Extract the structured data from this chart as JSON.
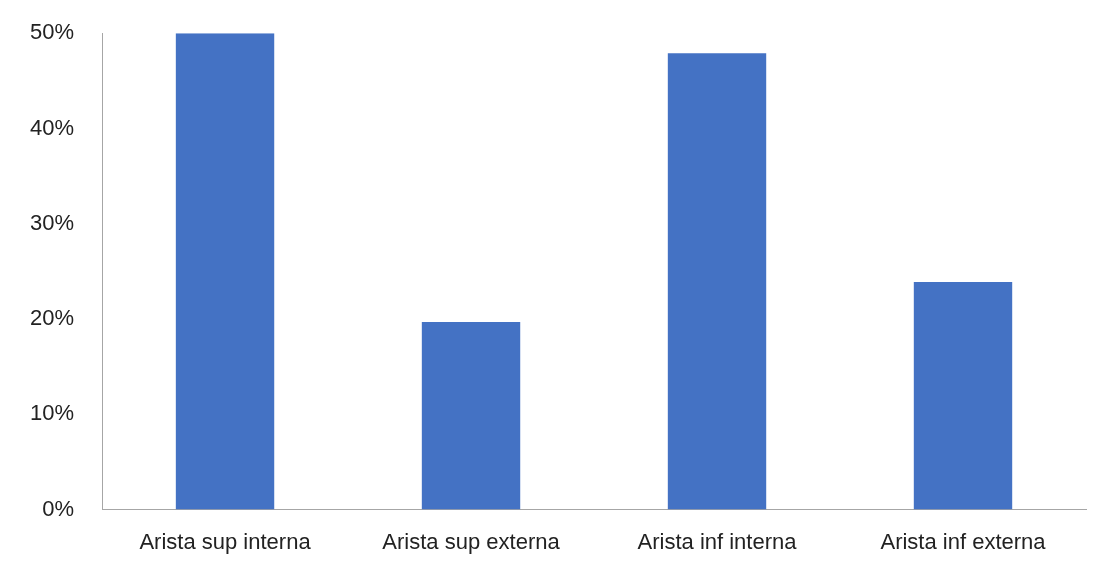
{
  "chart_data": {
    "type": "bar",
    "categories": [
      "Arista sup interna",
      "Arista sup externa",
      "Arista inf interna",
      "Arista inf externa"
    ],
    "values": [
      50,
      19.7,
      47.9,
      23.9
    ],
    "color": "#4472c4",
    "ylim": [
      0,
      50
    ],
    "yticks": [
      {
        "value": 0,
        "label": "0%"
      },
      {
        "value": 10,
        "label": "10%"
      },
      {
        "value": 20,
        "label": "20%"
      },
      {
        "value": 30,
        "label": "30%"
      },
      {
        "value": 40,
        "label": "40%"
      },
      {
        "value": 50,
        "label": "50%"
      }
    ]
  }
}
